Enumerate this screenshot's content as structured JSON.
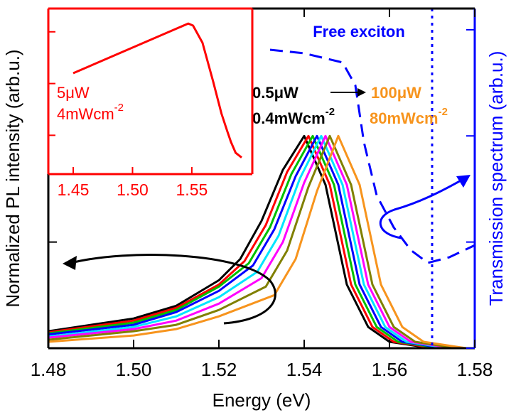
{
  "chart_data": [
    {
      "type": "line",
      "xlabel": "Energy (eV)",
      "ylabel": "Normalized PL intensity (arb.u.)",
      "y2label": "Transmission spectrum (arb.u.)",
      "xlim": [
        1.48,
        1.58
      ],
      "xticks": [
        1.48,
        {
          "value": 1.5,
          "label": "1.50"
        },
        1.52,
        1.54,
        1.56,
        1.58
      ],
      "ylim": [
        0,
        1.6
      ],
      "yticks": [
        0,
        0.5,
        1,
        1.5
      ],
      "y2lim": [
        0,
        1.6
      ],
      "y2ticks": [
        0,
        0.5,
        1,
        1.5
      ],
      "y2color": "#0000ff",
      "series": [
        {
          "color": "#000000",
          "x": [
            1.48,
            1.5,
            1.51,
            1.52,
            1.525,
            1.53,
            1.535,
            1.54,
            1.545,
            1.55,
            1.555,
            1.56,
            1.57
          ],
          "values": [
            0.08,
            0.14,
            0.2,
            0.32,
            0.42,
            0.6,
            0.84,
            1.0,
            0.77,
            0.3,
            0.1,
            0.03,
            0
          ]
        },
        {
          "color": "#ff0000",
          "x": [
            1.48,
            1.5,
            1.51,
            1.52,
            1.526,
            1.531,
            1.536,
            1.541,
            1.546,
            1.551,
            1.556,
            1.561,
            1.571
          ],
          "values": [
            0.075,
            0.13,
            0.19,
            0.3,
            0.41,
            0.58,
            0.83,
            1.0,
            0.77,
            0.3,
            0.1,
            0.03,
            0
          ]
        },
        {
          "color": "#00c000",
          "x": [
            1.48,
            1.5,
            1.51,
            1.52,
            1.527,
            1.532,
            1.537,
            1.542,
            1.547,
            1.552,
            1.557,
            1.562,
            1.572
          ],
          "values": [
            0.07,
            0.12,
            0.18,
            0.29,
            0.4,
            0.57,
            0.82,
            1.0,
            0.77,
            0.3,
            0.1,
            0.03,
            0
          ]
        },
        {
          "color": "#0000ff",
          "x": [
            1.48,
            1.5,
            1.51,
            1.52,
            1.528,
            1.533,
            1.538,
            1.543,
            1.548,
            1.553,
            1.558,
            1.563,
            1.573
          ],
          "values": [
            0.065,
            0.11,
            0.17,
            0.27,
            0.39,
            0.56,
            0.81,
            1.0,
            0.77,
            0.3,
            0.1,
            0.03,
            0
          ]
        },
        {
          "color": "#00e5ff",
          "x": [
            1.48,
            1.5,
            1.51,
            1.52,
            1.529,
            1.534,
            1.539,
            1.544,
            1.549,
            1.554,
            1.559,
            1.564,
            1.574
          ],
          "values": [
            0.055,
            0.1,
            0.15,
            0.24,
            0.36,
            0.53,
            0.8,
            1.0,
            0.77,
            0.3,
            0.1,
            0.03,
            0
          ]
        },
        {
          "color": "#ff00ff",
          "x": [
            1.48,
            1.5,
            1.51,
            1.52,
            1.53,
            1.535,
            1.54,
            1.545,
            1.55,
            1.555,
            1.56,
            1.565,
            1.575
          ],
          "values": [
            0.05,
            0.09,
            0.13,
            0.21,
            0.33,
            0.5,
            0.78,
            1.0,
            0.77,
            0.3,
            0.1,
            0.03,
            0
          ]
        },
        {
          "color": "#808000",
          "x": [
            1.48,
            1.5,
            1.51,
            1.52,
            1.531,
            1.536,
            1.541,
            1.546,
            1.551,
            1.556,
            1.561,
            1.566,
            1.576
          ],
          "values": [
            0.04,
            0.08,
            0.11,
            0.18,
            0.29,
            0.46,
            0.76,
            1.0,
            0.77,
            0.3,
            0.1,
            0.03,
            0
          ]
        },
        {
          "color": "#f7941d",
          "x": [
            1.48,
            1.5,
            1.51,
            1.52,
            1.533,
            1.538,
            1.543,
            1.548,
            1.553,
            1.558,
            1.563,
            1.568,
            1.578
          ],
          "values": [
            0.03,
            0.06,
            0.09,
            0.15,
            0.25,
            0.42,
            0.74,
            1.0,
            0.77,
            0.3,
            0.1,
            0.03,
            0
          ]
        },
        {
          "color": "#0000ff",
          "axis": "y2",
          "style": "dashed",
          "x": [
            1.532,
            1.54,
            1.549,
            1.552,
            1.554,
            1.557,
            1.561,
            1.565,
            1.569,
            1.574,
            1.58
          ],
          "values": [
            1.406,
            1.389,
            1.346,
            1.238,
            0.971,
            0.72,
            0.569,
            0.462,
            0.402,
            0.428,
            0.485
          ]
        }
      ],
      "vlines": [
        {
          "x": 1.57,
          "color": "#0000ff",
          "style": "dotted"
        }
      ],
      "annotations": [
        {
          "text": "Free exciton",
          "color": "#0000ff"
        },
        {
          "text": "0.5μW",
          "color": "#000000"
        },
        {
          "text": "0.4mWcm",
          "sup": "-2",
          "color": "#000000"
        },
        {
          "text": "100μW",
          "color": "#f7941d"
        },
        {
          "text": "80mWcm",
          "sup": "-2",
          "color": "#f7941d"
        }
      ]
    },
    {
      "type": "line",
      "color": "#ff0000",
      "xlim": [
        1.429,
        1.601
      ],
      "xticks": [
        1.45,
        {
          "value": 1.5,
          "label": "1.50"
        },
        1.55
      ],
      "ylim": [
        0,
        3.2
      ],
      "yticks": [
        0.75,
        1.75,
        2.75
      ],
      "series": [
        {
          "color": "#ff0000",
          "x": [
            1.45,
            1.547,
            1.551,
            1.559,
            1.568,
            1.575,
            1.58,
            1.583,
            1.587,
            1.592
          ],
          "values": [
            1.95,
            2.91,
            2.87,
            2.54,
            1.79,
            1.17,
            0.82,
            0.62,
            0.41,
            0.32
          ]
        }
      ],
      "annotations": [
        {
          "text": "5μW",
          "color": "#ff0000"
        },
        {
          "text": "4mWcm",
          "sup": "-2",
          "color": "#ff0000"
        }
      ]
    }
  ]
}
